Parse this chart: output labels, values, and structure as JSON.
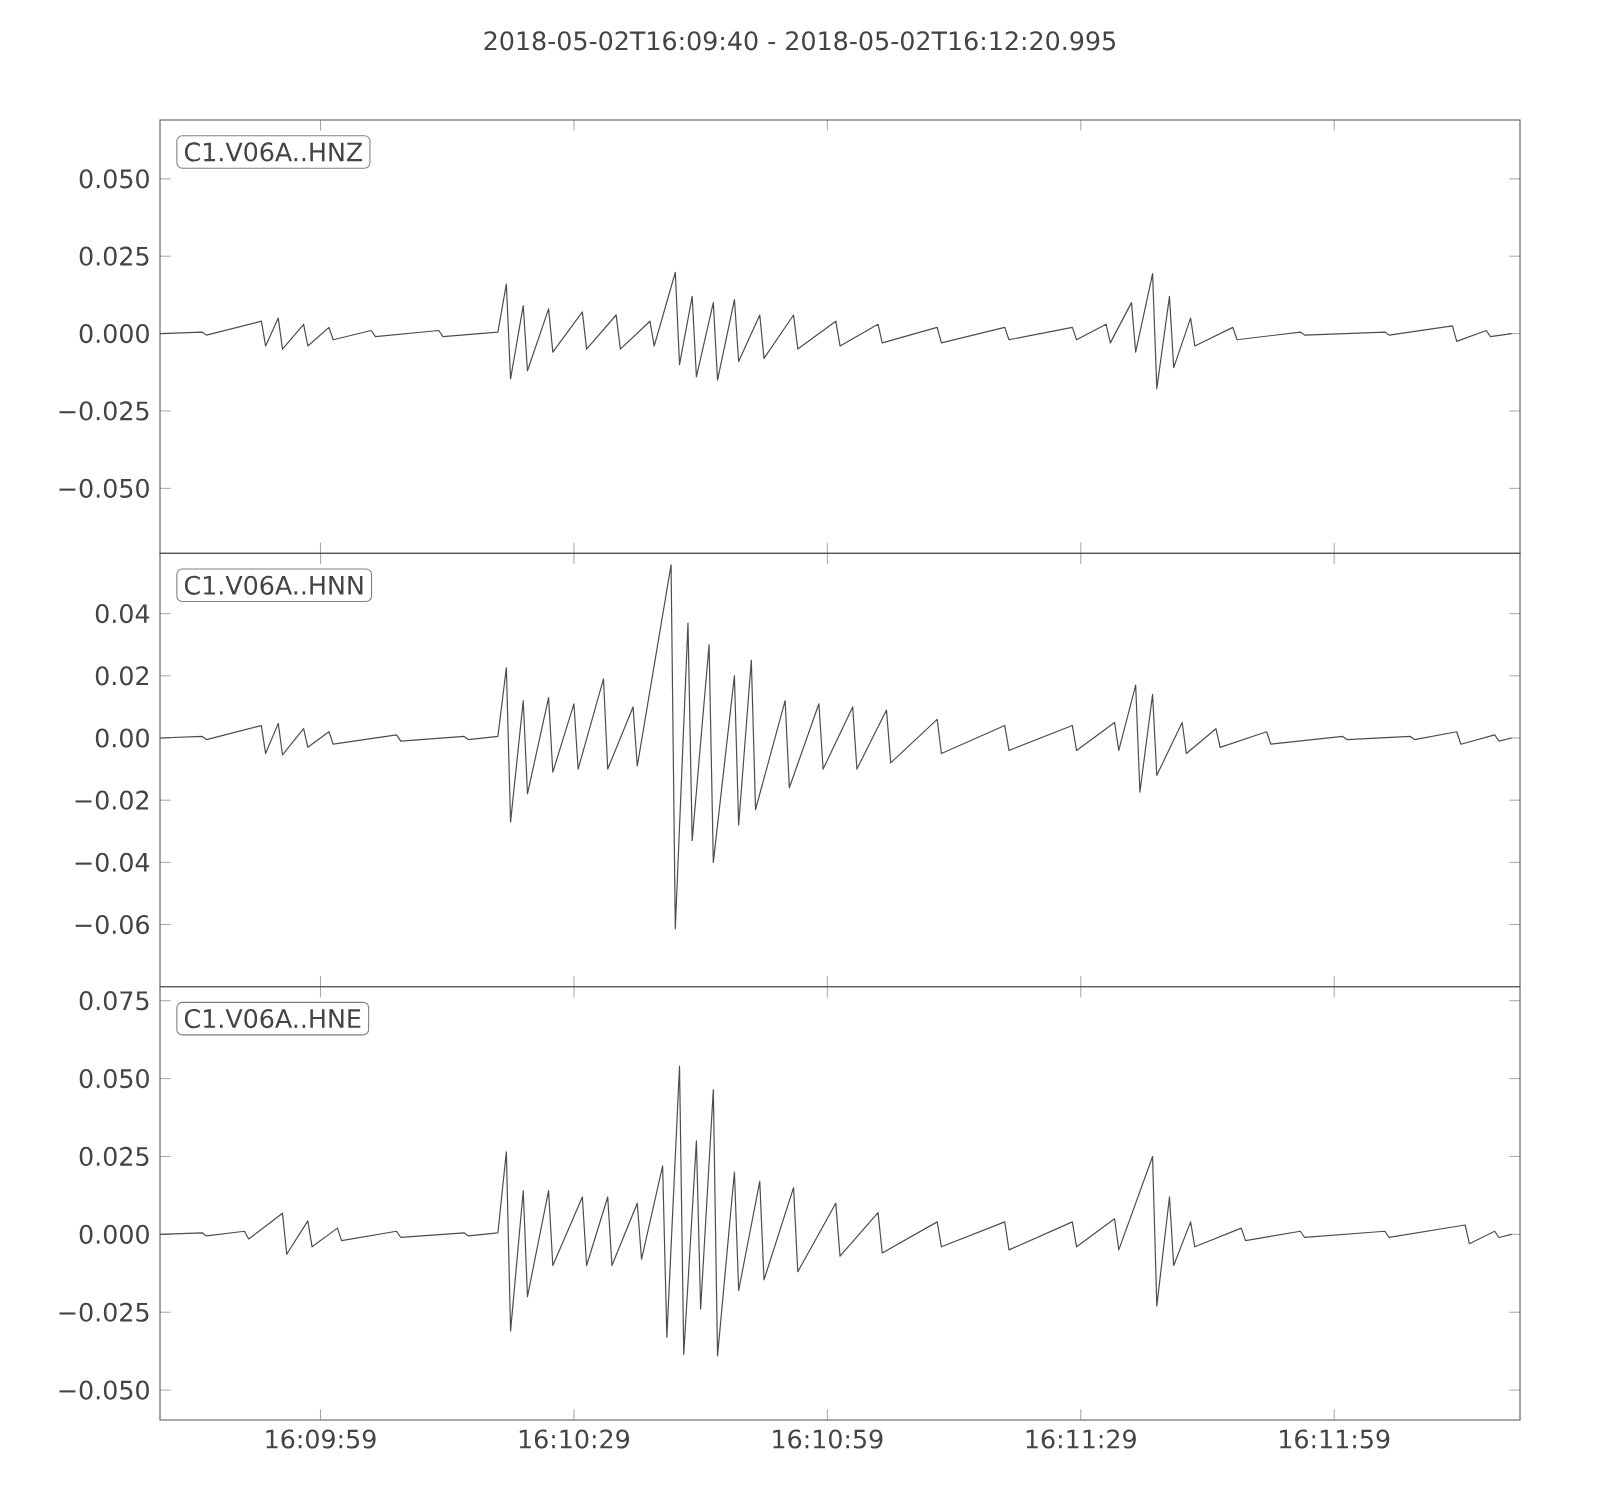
{
  "chart_data": [
    {
      "type": "line",
      "title": "2018-05-02T16:09:40  -  2018-05-02T16:12:20.995",
      "annotations": [
        "C1.V06A..HNZ"
      ],
      "tick_labels": "y",
      "xlim": [
        "2018-05-02T16:09:40",
        "2018-05-02T16:12:20.995"
      ],
      "xticks": [
        {
          "value": "2018-05-02T16:09:59",
          "label": null
        },
        {
          "value": "2018-05-02T16:10:29",
          "label": null
        },
        {
          "value": "2018-05-02T16:10:59",
          "label": null
        },
        {
          "value": "2018-05-02T16:11:29",
          "label": null
        },
        {
          "value": "2018-05-02T16:11:59",
          "label": null
        }
      ],
      "ylim": [
        -0.071,
        0.069
      ],
      "yticks": [
        {
          "value": -0.05,
          "label": "−0.050"
        },
        {
          "value": -0.025,
          "label": "−0.025"
        },
        {
          "value": 0,
          "label": "0.000"
        },
        {
          "value": 0.025,
          "label": "0.025"
        },
        {
          "value": 0.05,
          "label": "0.050"
        }
      ],
      "series": [
        {
          "color": "#4d4d4d",
          "x": [
            "2018-05-02T16:09:40",
            "2018-05-02T16:09:45",
            "2018-05-02T16:09:45.5",
            "2018-05-02T16:09:52",
            "2018-05-02T16:09:52.5",
            "2018-05-02T16:09:54",
            "2018-05-02T16:09:54.5",
            "2018-05-02T16:09:57",
            "2018-05-02T16:09:57.5",
            "2018-05-02T16:10:00",
            "2018-05-02T16:10:00.5",
            "2018-05-02T16:10:05",
            "2018-05-02T16:10:05.5",
            "2018-05-02T16:10:13",
            "2018-05-02T16:10:13.5",
            "2018-05-02T16:10:20",
            "2018-05-02T16:10:21",
            "2018-05-02T16:10:21.5",
            "2018-05-02T16:10:23",
            "2018-05-02T16:10:23.5",
            "2018-05-02T16:10:26",
            "2018-05-02T16:10:26.5",
            "2018-05-02T16:10:30",
            "2018-05-02T16:10:30.5",
            "2018-05-02T16:10:34",
            "2018-05-02T16:10:34.5",
            "2018-05-02T16:10:38",
            "2018-05-02T16:10:38.5",
            "2018-05-02T16:10:41",
            "2018-05-02T16:10:41.5",
            "2018-05-02T16:10:43",
            "2018-05-02T16:10:43.5",
            "2018-05-02T16:10:45.5",
            "2018-05-02T16:10:46",
            "2018-05-02T16:10:48",
            "2018-05-02T16:10:48.5",
            "2018-05-02T16:10:51",
            "2018-05-02T16:10:51.5",
            "2018-05-02T16:10:55",
            "2018-05-02T16:10:55.5",
            "2018-05-02T16:11:00",
            "2018-05-02T16:11:00.5",
            "2018-05-02T16:11:05",
            "2018-05-02T16:11:05.5",
            "2018-05-02T16:11:12",
            "2018-05-02T16:11:12.5",
            "2018-05-02T16:11:20",
            "2018-05-02T16:11:20.5",
            "2018-05-02T16:11:28",
            "2018-05-02T16:11:28.5",
            "2018-05-02T16:11:32",
            "2018-05-02T16:11:32.5",
            "2018-05-02T16:11:35",
            "2018-05-02T16:11:35.5",
            "2018-05-02T16:11:37.5",
            "2018-05-02T16:11:38",
            "2018-05-02T16:11:39.5",
            "2018-05-02T16:11:40",
            "2018-05-02T16:11:42",
            "2018-05-02T16:11:42.5",
            "2018-05-02T16:11:47",
            "2018-05-02T16:11:47.5",
            "2018-05-02T16:11:55",
            "2018-05-02T16:11:55.5",
            "2018-05-02T16:12:05",
            "2018-05-02T16:12:05.5",
            "2018-05-02T16:12:13",
            "2018-05-02T16:12:13.5",
            "2018-05-02T16:12:17",
            "2018-05-02T16:12:17.5",
            "2018-05-02T16:12:20"
          ],
          "values": [
            0,
            0.0005,
            -0.0005,
            0.004,
            -0.004,
            0.005,
            -0.005,
            0.003,
            -0.004,
            0.002,
            -0.002,
            0.001,
            -0.001,
            0.001,
            -0.001,
            0.0005,
            0.016,
            -0.0146,
            0.009,
            -0.012,
            0.008,
            -0.006,
            0.007,
            -0.005,
            0.006,
            -0.005,
            0.004,
            -0.004,
            0.0198,
            -0.01,
            0.012,
            -0.014,
            0.01,
            -0.015,
            0.011,
            -0.009,
            0.006,
            -0.008,
            0.006,
            -0.005,
            0.004,
            -0.004,
            0.003,
            -0.003,
            0.002,
            -0.003,
            0.002,
            -0.002,
            0.002,
            -0.002,
            0.003,
            -0.003,
            0.01,
            -0.006,
            0.0194,
            -0.0178,
            0.012,
            -0.011,
            0.005,
            -0.004,
            0.002,
            -0.002,
            0.0005,
            -0.0005,
            0.0005,
            -0.0005,
            0.0025,
            -0.0025,
            0.001,
            -0.001,
            0
          ]
        }
      ]
    },
    {
      "type": "line",
      "annotations": [
        "C1.V06A..HNN"
      ],
      "tick_labels": "y",
      "xlim": [
        "2018-05-02T16:09:40",
        "2018-05-02T16:12:20.995"
      ],
      "xticks": [
        {
          "value": "2018-05-02T16:09:59",
          "label": null
        },
        {
          "value": "2018-05-02T16:10:29",
          "label": null
        },
        {
          "value": "2018-05-02T16:10:59",
          "label": null
        },
        {
          "value": "2018-05-02T16:11:29",
          "label": null
        },
        {
          "value": "2018-05-02T16:11:59",
          "label": null
        }
      ],
      "ylim": [
        -0.08,
        0.0594
      ],
      "yticks": [
        {
          "value": -0.06,
          "label": "−0.06"
        },
        {
          "value": -0.04,
          "label": "−0.04"
        },
        {
          "value": -0.02,
          "label": "−0.02"
        },
        {
          "value": 0,
          "label": "0.00"
        },
        {
          "value": 0.02,
          "label": "0.02"
        },
        {
          "value": 0.04,
          "label": "0.04"
        }
      ],
      "series": [
        {
          "color": "#4d4d4d",
          "x": [
            "2018-05-02T16:09:40",
            "2018-05-02T16:09:45",
            "2018-05-02T16:09:45.5",
            "2018-05-02T16:09:52",
            "2018-05-02T16:09:52.5",
            "2018-05-02T16:09:54",
            "2018-05-02T16:09:54.5",
            "2018-05-02T16:09:57",
            "2018-05-02T16:09:57.5",
            "2018-05-02T16:10:00",
            "2018-05-02T16:10:00.5",
            "2018-05-02T16:10:08",
            "2018-05-02T16:10:08.5",
            "2018-05-02T16:10:16",
            "2018-05-02T16:10:16.5",
            "2018-05-02T16:10:20",
            "2018-05-02T16:10:21",
            "2018-05-02T16:10:21.5",
            "2018-05-02T16:10:23",
            "2018-05-02T16:10:23.5",
            "2018-05-02T16:10:26",
            "2018-05-02T16:10:26.5",
            "2018-05-02T16:10:29",
            "2018-05-02T16:10:29.5",
            "2018-05-02T16:10:32.5",
            "2018-05-02T16:10:33",
            "2018-05-02T16:10:36",
            "2018-05-02T16:10:36.5",
            "2018-05-02T16:10:40.5",
            "2018-05-02T16:10:41",
            "2018-05-02T16:10:42.5",
            "2018-05-02T16:10:43",
            "2018-05-02T16:10:45",
            "2018-05-02T16:10:45.5",
            "2018-05-02T16:10:48",
            "2018-05-02T16:10:48.5",
            "2018-05-02T16:10:50",
            "2018-05-02T16:10:50.5",
            "2018-05-02T16:10:54",
            "2018-05-02T16:10:54.5",
            "2018-05-02T16:10:58",
            "2018-05-02T16:10:58.5",
            "2018-05-02T16:11:02",
            "2018-05-02T16:11:02.5",
            "2018-05-02T16:11:06",
            "2018-05-02T16:11:06.5",
            "2018-05-02T16:11:12",
            "2018-05-02T16:11:12.5",
            "2018-05-02T16:11:20",
            "2018-05-02T16:11:20.5",
            "2018-05-02T16:11:28",
            "2018-05-02T16:11:28.5",
            "2018-05-02T16:11:33",
            "2018-05-02T16:11:33.5",
            "2018-05-02T16:11:35.5",
            "2018-05-02T16:11:36",
            "2018-05-02T16:11:37.5",
            "2018-05-02T16:11:38",
            "2018-05-02T16:11:41",
            "2018-05-02T16:11:41.5",
            "2018-05-02T16:11:45",
            "2018-05-02T16:11:45.5",
            "2018-05-02T16:11:51",
            "2018-05-02T16:11:51.5",
            "2018-05-02T16:12:00",
            "2018-05-02T16:12:00.5",
            "2018-05-02T16:12:08",
            "2018-05-02T16:12:08.5",
            "2018-05-02T16:12:13.5",
            "2018-05-02T16:12:14",
            "2018-05-02T16:12:18",
            "2018-05-02T16:12:18.5",
            "2018-05-02T16:12:20"
          ],
          "values": [
            0,
            0.0005,
            -0.0005,
            0.004,
            -0.005,
            0.0047,
            -0.0054,
            0.003,
            -0.003,
            0.002,
            -0.002,
            0.001,
            -0.001,
            0.0005,
            -0.0005,
            0.0005,
            0.0226,
            -0.027,
            0.012,
            -0.018,
            0.013,
            -0.011,
            0.011,
            -0.01,
            0.019,
            -0.01,
            0.01,
            -0.009,
            0.0557,
            -0.0613,
            0.037,
            -0.033,
            0.03,
            -0.04,
            0.02,
            -0.028,
            0.025,
            -0.023,
            0.012,
            -0.016,
            0.011,
            -0.01,
            0.01,
            -0.01,
            0.009,
            -0.008,
            0.006,
            -0.005,
            0.004,
            -0.004,
            0.004,
            -0.004,
            0.005,
            -0.004,
            0.017,
            -0.0174,
            0.014,
            -0.012,
            0.005,
            -0.005,
            0.003,
            -0.003,
            0.002,
            -0.002,
            0.0005,
            -0.0005,
            0.0005,
            -0.0005,
            0.002,
            -0.002,
            0.001,
            -0.001,
            0
          ]
        }
      ]
    },
    {
      "type": "line",
      "annotations": [
        "C1.V06A..HNE"
      ],
      "xlim": [
        "2018-05-02T16:09:40",
        "2018-05-02T16:12:20.995"
      ],
      "xticks": [
        {
          "value": "2018-05-02T16:09:59",
          "label": "16:09:59"
        },
        {
          "value": "2018-05-02T16:10:29",
          "label": "16:10:29"
        },
        {
          "value": "2018-05-02T16:10:59",
          "label": "16:10:59"
        },
        {
          "value": "2018-05-02T16:11:29",
          "label": "16:11:29"
        },
        {
          "value": "2018-05-02T16:11:59",
          "label": "16:11:59"
        }
      ],
      "ylim": [
        -0.0596,
        0.0795
      ],
      "yticks": [
        {
          "value": -0.05,
          "label": "−0.050"
        },
        {
          "value": -0.025,
          "label": "−0.025"
        },
        {
          "value": 0,
          "label": "0.000"
        },
        {
          "value": 0.025,
          "label": "0.025"
        },
        {
          "value": 0.05,
          "label": "0.050"
        },
        {
          "value": 0.075,
          "label": "0.075"
        }
      ],
      "series": [
        {
          "color": "#4d4d4d",
          "x": [
            "2018-05-02T16:09:40",
            "2018-05-02T16:09:45",
            "2018-05-02T16:09:45.5",
            "2018-05-02T16:09:50",
            "2018-05-02T16:09:50.5",
            "2018-05-02T16:09:54.5",
            "2018-05-02T16:09:55",
            "2018-05-02T16:09:57.5",
            "2018-05-02T16:09:58",
            "2018-05-02T16:10:01",
            "2018-05-02T16:10:01.5",
            "2018-05-02T16:10:08",
            "2018-05-02T16:10:08.5",
            "2018-05-02T16:10:16",
            "2018-05-02T16:10:16.5",
            "2018-05-02T16:10:20",
            "2018-05-02T16:10:21",
            "2018-05-02T16:10:21.5",
            "2018-05-02T16:10:23",
            "2018-05-02T16:10:23.5",
            "2018-05-02T16:10:26",
            "2018-05-02T16:10:26.5",
            "2018-05-02T16:10:30",
            "2018-05-02T16:10:30.5",
            "2018-05-02T16:10:33",
            "2018-05-02T16:10:33.5",
            "2018-05-02T16:10:36.5",
            "2018-05-02T16:10:37",
            "2018-05-02T16:10:39.5",
            "2018-05-02T16:10:40",
            "2018-05-02T16:10:41.5",
            "2018-05-02T16:10:42",
            "2018-05-02T16:10:43.5",
            "2018-05-02T16:10:44",
            "2018-05-02T16:10:45.5",
            "2018-05-02T16:10:46",
            "2018-05-02T16:10:48",
            "2018-05-02T16:10:48.5",
            "2018-05-02T16:10:51",
            "2018-05-02T16:10:51.5",
            "2018-05-02T16:10:55",
            "2018-05-02T16:10:55.5",
            "2018-05-02T16:11:00",
            "2018-05-02T16:11:00.5",
            "2018-05-02T16:11:05",
            "2018-05-02T16:11:05.5",
            "2018-05-02T16:11:12",
            "2018-05-02T16:11:12.5",
            "2018-05-02T16:11:20",
            "2018-05-02T16:11:20.5",
            "2018-05-02T16:11:28",
            "2018-05-02T16:11:28.5",
            "2018-05-02T16:11:33",
            "2018-05-02T16:11:33.5",
            "2018-05-02T16:11:37.5",
            "2018-05-02T16:11:38",
            "2018-05-02T16:11:39.5",
            "2018-05-02T16:11:40",
            "2018-05-02T16:11:42",
            "2018-05-02T16:11:42.5",
            "2018-05-02T16:11:48",
            "2018-05-02T16:11:48.5",
            "2018-05-02T16:11:55",
            "2018-05-02T16:11:55.5",
            "2018-05-02T16:12:05",
            "2018-05-02T16:12:05.5",
            "2018-05-02T16:12:14.5",
            "2018-05-02T16:12:15",
            "2018-05-02T16:12:18",
            "2018-05-02T16:12:18.5",
            "2018-05-02T16:12:20"
          ],
          "values": [
            0,
            0.0005,
            -0.0005,
            0.001,
            -0.0015,
            0.0068,
            -0.0064,
            0.0043,
            -0.004,
            0.002,
            -0.002,
            0.001,
            -0.001,
            0.0005,
            -0.0005,
            0.0005,
            0.0265,
            -0.031,
            0.014,
            -0.02,
            0.014,
            -0.01,
            0.012,
            -0.01,
            0.012,
            -0.01,
            0.01,
            -0.008,
            0.022,
            -0.033,
            0.054,
            -0.0385,
            0.03,
            -0.024,
            0.0464,
            -0.039,
            0.02,
            -0.018,
            0.017,
            -0.0146,
            0.015,
            -0.012,
            0.01,
            -0.007,
            0.007,
            -0.006,
            0.004,
            -0.004,
            0.004,
            -0.005,
            0.004,
            -0.004,
            0.005,
            -0.005,
            0.025,
            -0.023,
            0.012,
            -0.01,
            0.004,
            -0.004,
            0.002,
            -0.002,
            0.001,
            -0.001,
            0.001,
            -0.001,
            0.003,
            -0.003,
            0.001,
            -0.001,
            0
          ]
        }
      ]
    }
  ]
}
